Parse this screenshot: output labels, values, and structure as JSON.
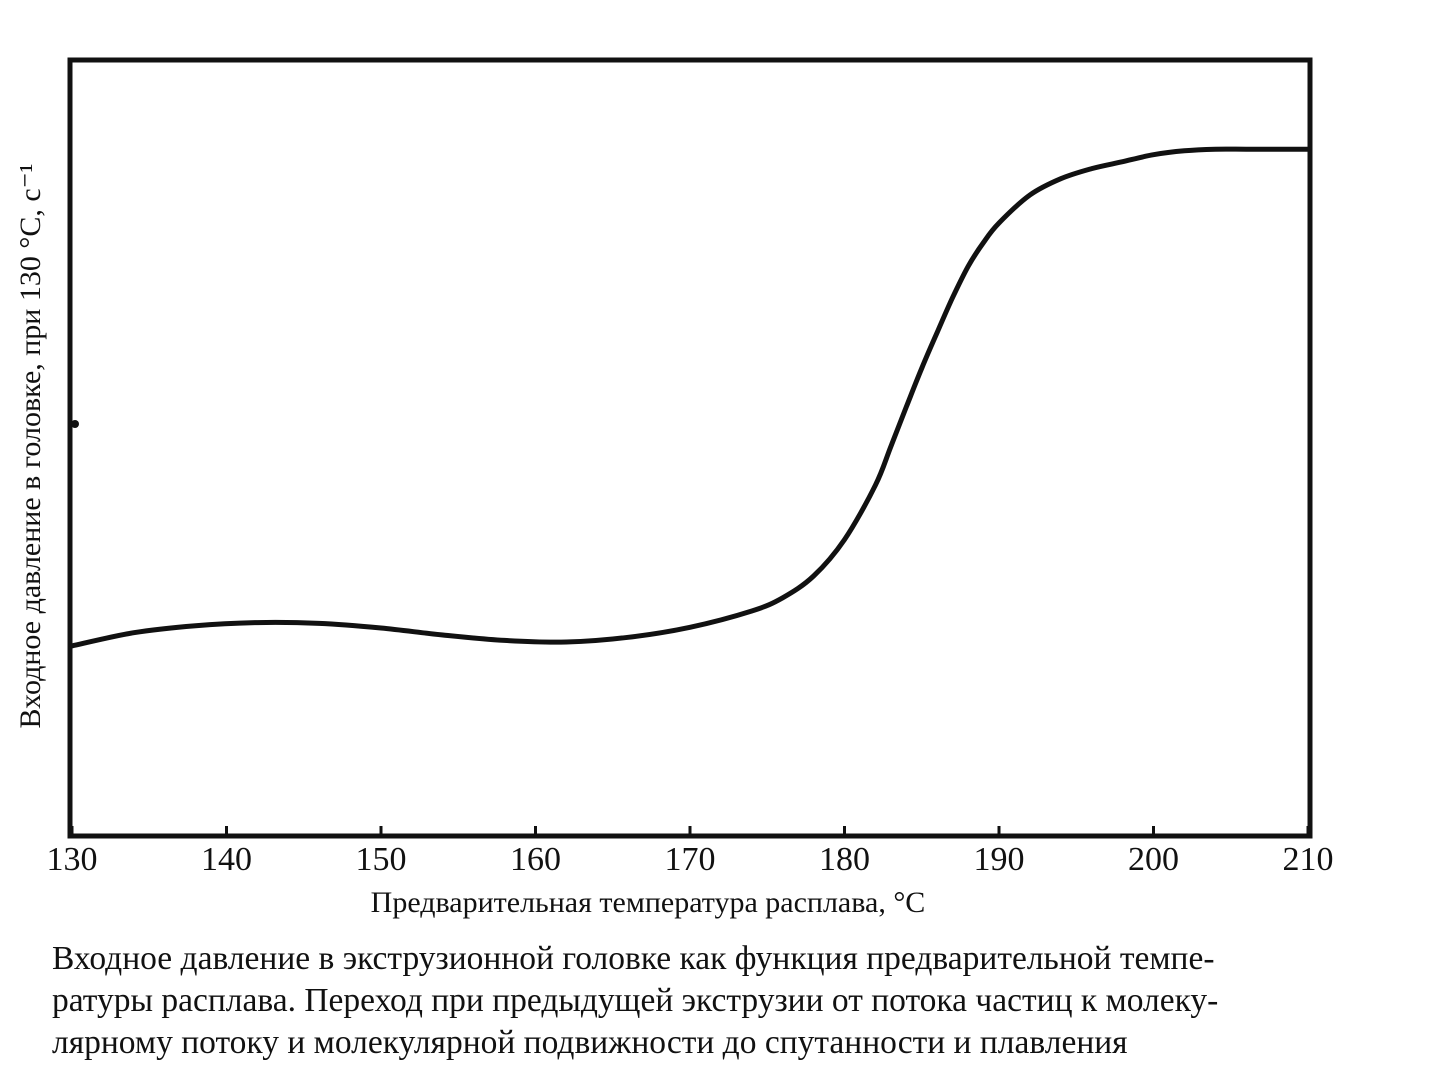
{
  "chart_data": {
    "type": "line",
    "title": "",
    "xlabel": "Предварительная температура расплава, °C",
    "ylabel": "Входное давление в головке,   при 130 °C, c⁻¹",
    "xlim": [
      130,
      210
    ],
    "ylim": [
      0,
      1
    ],
    "x_ticks": [
      "130",
      "140",
      "150",
      "160",
      "170",
      "180",
      "190",
      "200",
      "210"
    ],
    "y_ticks_shown": false,
    "grid": false,
    "legend": "none",
    "line_color": "#111111",
    "series": [
      {
        "x": [
          130,
          134,
          138,
          142,
          146,
          150,
          154,
          158,
          162,
          166,
          170,
          174,
          176,
          178,
          180,
          182,
          183,
          184,
          185,
          186,
          187,
          188,
          189,
          190,
          192,
          194,
          196,
          198,
          200,
          202,
          204,
          206,
          208,
          210
        ],
        "y": [
          0.245,
          0.262,
          0.271,
          0.275,
          0.274,
          0.268,
          0.259,
          0.252,
          0.25,
          0.256,
          0.269,
          0.29,
          0.307,
          0.335,
          0.382,
          0.452,
          0.502,
          0.553,
          0.603,
          0.649,
          0.694,
          0.734,
          0.765,
          0.79,
          0.826,
          0.847,
          0.86,
          0.869,
          0.878,
          0.883,
          0.885,
          0.885,
          0.885,
          0.885
        ]
      }
    ]
  },
  "caption": {
    "line1": "Входное давление в экструзионной головке как функция предварительной темпе-",
    "line2": "ратуры расплава. Переход при предыдущей экструзии от потока частиц к молеку-",
    "line3": "лярному потоку и молекулярной подвижности до спутанности и плавления"
  }
}
